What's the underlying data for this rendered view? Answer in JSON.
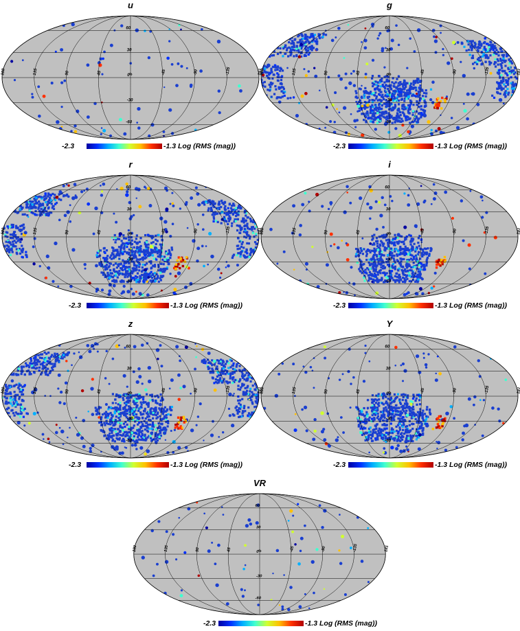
{
  "colorbar": {
    "min_label": "-2.3",
    "max_label": "-1.3 Log (RMS (mag))",
    "colors": [
      "#0000a0",
      "#0030ff",
      "#00b0ff",
      "#40ffd0",
      "#d0ff30",
      "#ffc000",
      "#ff3000",
      "#b00000"
    ]
  },
  "map_style": {
    "background": "#c0c0c0",
    "grid": "#000000",
    "data_fill": "#1a3fd0"
  },
  "graticule": {
    "lat_labels": [
      "60",
      "30",
      "0",
      "-30",
      "-60"
    ],
    "lon_labels": [
      "180",
      "135",
      "90",
      "45",
      "0",
      "-45",
      "-90",
      "-135",
      "181"
    ]
  },
  "panels": [
    {
      "band": "u",
      "coverage": "sparse"
    },
    {
      "band": "g",
      "coverage": "dense"
    },
    {
      "band": "r",
      "coverage": "dense"
    },
    {
      "band": "i",
      "coverage": "moderate"
    },
    {
      "band": "z",
      "coverage": "dense"
    },
    {
      "band": "Y",
      "coverage": "moderate"
    },
    {
      "band": "VR",
      "coverage": "sparse"
    }
  ]
}
